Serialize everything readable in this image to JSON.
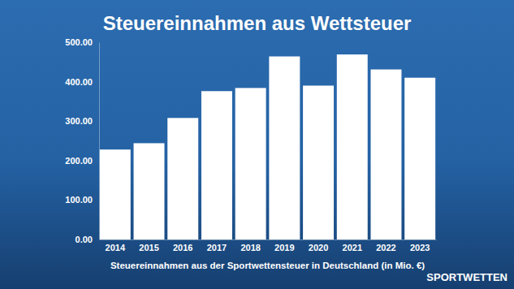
{
  "chart_data": {
    "type": "bar",
    "title": "Steuereinnahmen aus Wettsteuer",
    "x_label": "Steuereinnahmen aus der Sportwettensteuer in Deutschland (in Mio. €)",
    "categories": [
      "2014",
      "2015",
      "2016",
      "2017",
      "2018",
      "2019",
      "2020",
      "2021",
      "2022",
      "2023"
    ],
    "values": [
      228,
      244,
      308,
      376,
      384,
      464,
      390,
      469,
      431,
      410
    ],
    "color": "#ffffff",
    "ylim": [
      0,
      500
    ],
    "yticks": [
      {
        "value": 0,
        "label": "0.00"
      },
      {
        "value": 100,
        "label": "100.00"
      },
      {
        "value": 200,
        "label": "200.00"
      },
      {
        "value": 300,
        "label": "300.00"
      },
      {
        "value": 400,
        "label": "400.00"
      },
      {
        "value": 500,
        "label": "500.00"
      }
    ],
    "grid": false,
    "annotations": [
      "SPORTWETTEN"
    ]
  }
}
